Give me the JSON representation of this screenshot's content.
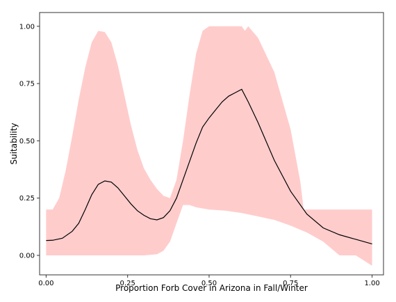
{
  "chart_data": {
    "type": "line",
    "xlabel": "Proportion Forb Cover in Arizona in Fall/Winter",
    "ylabel": "Suitability",
    "xlim": [
      -0.02,
      1.035
    ],
    "ylim": [
      -0.085,
      1.06
    ],
    "x_ticks": [
      0.0,
      0.25,
      0.5,
      0.75,
      1.0
    ],
    "x_tick_labels": [
      "0.00",
      "0.25",
      "0.50",
      "0.75",
      "1.00"
    ],
    "y_ticks": [
      0.0,
      0.25,
      0.5,
      0.75,
      1.0
    ],
    "y_tick_labels": [
      "0.00",
      "0.25",
      "0.50",
      "0.75",
      "1.00"
    ],
    "grid": false,
    "colors": {
      "band": "#ffcccc",
      "line": "#000000",
      "border": "#333333"
    },
    "series": [
      {
        "kind": "line",
        "x": [
          0.0,
          0.02,
          0.05,
          0.08,
          0.1,
          0.12,
          0.14,
          0.16,
          0.18,
          0.2,
          0.22,
          0.24,
          0.26,
          0.28,
          0.3,
          0.32,
          0.34,
          0.36,
          0.38,
          0.4,
          0.42,
          0.44,
          0.46,
          0.48,
          0.5,
          0.52,
          0.54,
          0.56,
          0.58,
          0.6,
          0.62,
          0.65,
          0.7,
          0.75,
          0.8,
          0.85,
          0.9,
          0.95,
          1.0
        ],
        "y": [
          0.065,
          0.066,
          0.075,
          0.105,
          0.14,
          0.2,
          0.265,
          0.31,
          0.325,
          0.32,
          0.295,
          0.26,
          0.225,
          0.195,
          0.175,
          0.16,
          0.155,
          0.165,
          0.195,
          0.25,
          0.33,
          0.41,
          0.49,
          0.56,
          0.6,
          0.635,
          0.67,
          0.695,
          0.71,
          0.725,
          0.67,
          0.58,
          0.415,
          0.28,
          0.18,
          0.12,
          0.09,
          0.07,
          0.05
        ]
      },
      {
        "kind": "band-upper",
        "x": [
          0.0,
          0.02,
          0.04,
          0.06,
          0.08,
          0.1,
          0.12,
          0.14,
          0.16,
          0.18,
          0.2,
          0.22,
          0.24,
          0.26,
          0.28,
          0.3,
          0.32,
          0.34,
          0.36,
          0.38,
          0.4,
          0.42,
          0.44,
          0.46,
          0.48,
          0.5,
          0.52,
          0.6,
          0.61,
          0.62,
          0.65,
          0.7,
          0.75,
          0.78,
          0.79,
          0.8,
          0.85,
          0.9,
          0.95,
          1.0
        ],
        "y": [
          0.2,
          0.2,
          0.25,
          0.37,
          0.52,
          0.68,
          0.82,
          0.93,
          0.98,
          0.975,
          0.93,
          0.83,
          0.7,
          0.57,
          0.46,
          0.38,
          0.33,
          0.29,
          0.26,
          0.25,
          0.33,
          0.5,
          0.7,
          0.88,
          0.98,
          1.0,
          1.0,
          1.0,
          0.98,
          1.0,
          0.95,
          0.8,
          0.55,
          0.32,
          0.2,
          0.2,
          0.2,
          0.2,
          0.2,
          0.2
        ]
      },
      {
        "kind": "band-lower",
        "x": [
          0.0,
          0.05,
          0.1,
          0.15,
          0.2,
          0.25,
          0.3,
          0.34,
          0.36,
          0.38,
          0.4,
          0.42,
          0.44,
          0.46,
          0.5,
          0.55,
          0.6,
          0.65,
          0.7,
          0.75,
          0.8,
          0.85,
          0.9,
          0.95,
          1.0
        ],
        "y": [
          0.0,
          0.0,
          0.0,
          0.0,
          0.0,
          0.0,
          0.0,
          0.005,
          0.02,
          0.06,
          0.14,
          0.22,
          0.22,
          0.21,
          0.2,
          0.195,
          0.185,
          0.17,
          0.155,
          0.13,
          0.1,
          0.06,
          0.0,
          0.0,
          -0.045
        ]
      }
    ]
  }
}
